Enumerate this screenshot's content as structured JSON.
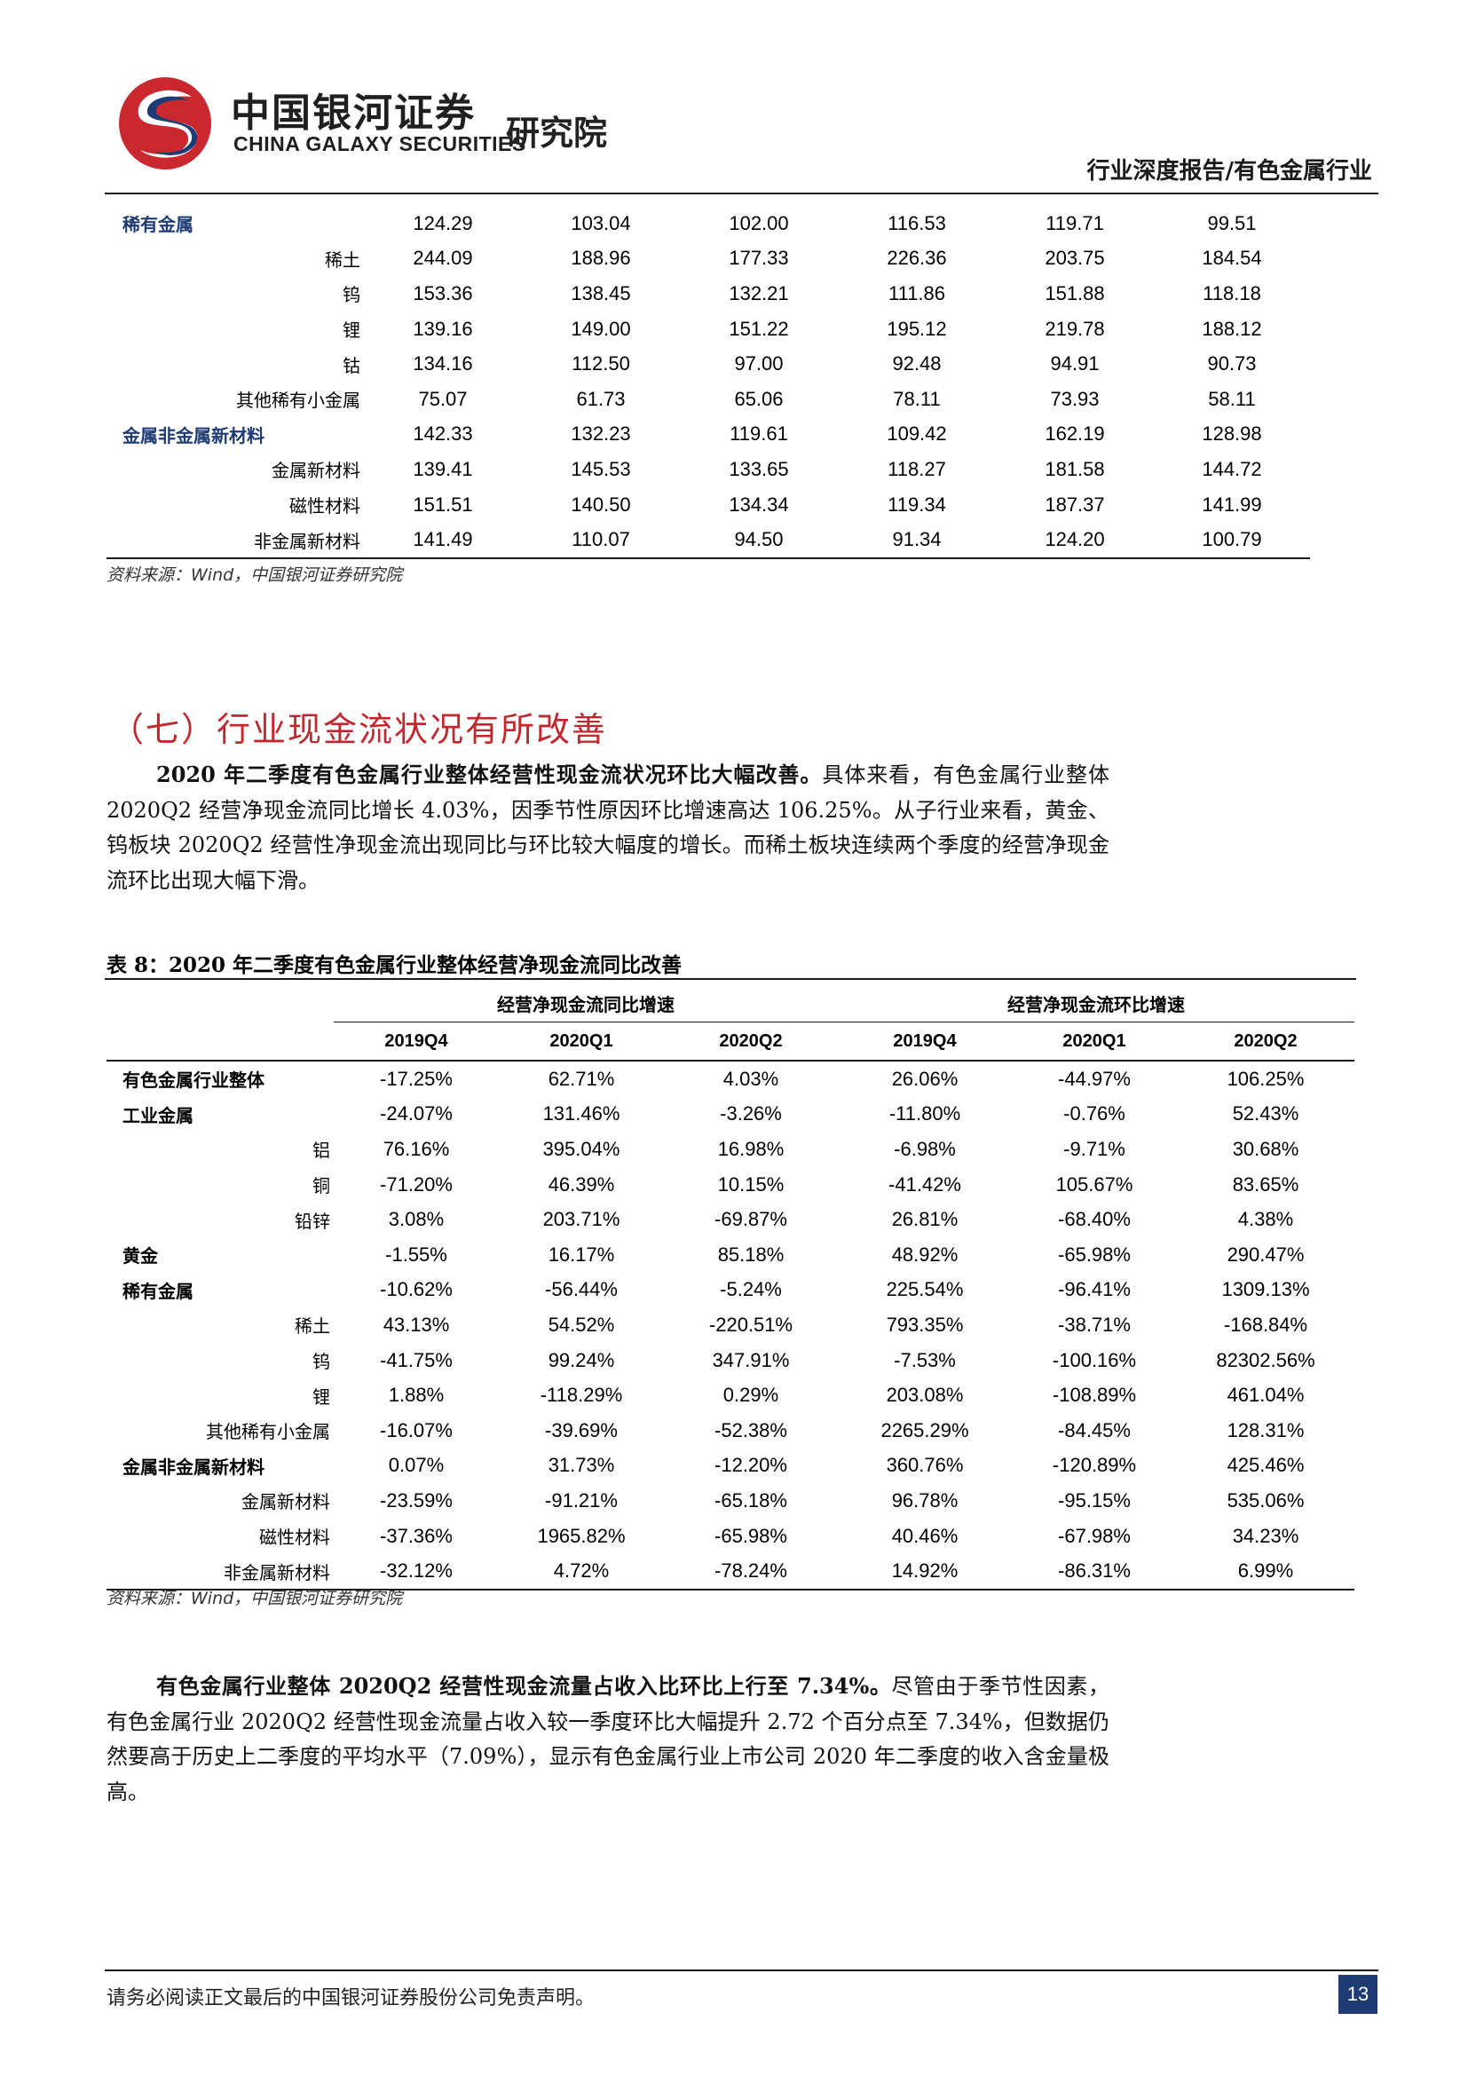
{
  "header": {
    "logo_cn": "中国银河证券",
    "logo_en": "CHINA GALAXY SECURITIES",
    "logo_institute": "研究院",
    "report_type": "行业深度报告/有色金属行业",
    "logo_colors": {
      "red": "#c8282e",
      "blue": "#1f3b73"
    }
  },
  "table1": {
    "rows": [
      {
        "label": "稀有金属",
        "type": "category",
        "values": [
          "124.29",
          "103.04",
          "102.00",
          "116.53",
          "119.71",
          "99.51"
        ]
      },
      {
        "label": "稀土",
        "type": "sub",
        "values": [
          "244.09",
          "188.96",
          "177.33",
          "226.36",
          "203.75",
          "184.54"
        ]
      },
      {
        "label": "钨",
        "type": "sub",
        "values": [
          "153.36",
          "138.45",
          "132.21",
          "111.86",
          "151.88",
          "118.18"
        ]
      },
      {
        "label": "锂",
        "type": "sub",
        "values": [
          "139.16",
          "149.00",
          "151.22",
          "195.12",
          "219.78",
          "188.12"
        ]
      },
      {
        "label": "钴",
        "type": "sub",
        "values": [
          "134.16",
          "112.50",
          "97.00",
          "92.48",
          "94.91",
          "90.73"
        ]
      },
      {
        "label": "其他稀有小金属",
        "type": "sub",
        "values": [
          "75.07",
          "61.73",
          "65.06",
          "78.11",
          "73.93",
          "58.11"
        ]
      },
      {
        "label": "金属非金属新材料",
        "type": "category",
        "values": [
          "142.33",
          "132.23",
          "119.61",
          "109.42",
          "162.19",
          "128.98"
        ]
      },
      {
        "label": "金属新材料",
        "type": "sub",
        "values": [
          "139.41",
          "145.53",
          "133.65",
          "118.27",
          "181.58",
          "144.72"
        ]
      },
      {
        "label": "磁性材料",
        "type": "sub",
        "values": [
          "151.51",
          "140.50",
          "134.34",
          "119.34",
          "187.37",
          "141.99"
        ]
      },
      {
        "label": "非金属新材料",
        "type": "sub",
        "values": [
          "141.49",
          "110.07",
          "94.50",
          "91.34",
          "124.20",
          "100.79"
        ]
      }
    ],
    "source": "资料来源：Wind，中国银河证券研究院"
  },
  "section": {
    "heading": "（七）行业现金流状况有所改善",
    "para1_bold": "2020 年二季度有色金属行业整体经营性现金流状况环比大幅改善。",
    "para1_rest": "具体来看，有色金属行业整体 2020Q2 经营净现金流同比增长 4.03%，因季节性原因环比增速高达 106.25%。从子行业来看，黄金、钨板块 2020Q2 经营性净现金流出现同比与环比较大幅度的增长。而稀土板块连续两个季度的经营净现金流环比出现大幅下滑。"
  },
  "table2": {
    "caption": "表 8：2020 年二季度有色金属行业整体经营净现金流同比改善",
    "group_headers": [
      "经营净现金流同比增速",
      "经营净现金流环比增速"
    ],
    "period_headers": [
      "2019Q4",
      "2020Q1",
      "2020Q2",
      "2019Q4",
      "2020Q1",
      "2020Q2"
    ],
    "rows": [
      {
        "label": "有色金属行业整体",
        "type": "category",
        "values": [
          "-17.25%",
          "62.71%",
          "4.03%",
          "26.06%",
          "-44.97%",
          "106.25%"
        ]
      },
      {
        "label": "工业金属",
        "type": "category",
        "values": [
          "-24.07%",
          "131.46%",
          "-3.26%",
          "-11.80%",
          "-0.76%",
          "52.43%"
        ]
      },
      {
        "label": "铝",
        "type": "sub",
        "values": [
          "76.16%",
          "395.04%",
          "16.98%",
          "-6.98%",
          "-9.71%",
          "30.68%"
        ]
      },
      {
        "label": "铜",
        "type": "sub",
        "values": [
          "-71.20%",
          "46.39%",
          "10.15%",
          "-41.42%",
          "105.67%",
          "83.65%"
        ]
      },
      {
        "label": "铅锌",
        "type": "sub",
        "values": [
          "3.08%",
          "203.71%",
          "-69.87%",
          "26.81%",
          "-68.40%",
          "4.38%"
        ]
      },
      {
        "label": "黄金",
        "type": "category",
        "values": [
          "-1.55%",
          "16.17%",
          "85.18%",
          "48.92%",
          "-65.98%",
          "290.47%"
        ]
      },
      {
        "label": "稀有金属",
        "type": "category",
        "values": [
          "-10.62%",
          "-56.44%",
          "-5.24%",
          "225.54%",
          "-96.41%",
          "1309.13%"
        ]
      },
      {
        "label": "稀土",
        "type": "sub",
        "values": [
          "43.13%",
          "54.52%",
          "-220.51%",
          "793.35%",
          "-38.71%",
          "-168.84%"
        ]
      },
      {
        "label": "钨",
        "type": "sub",
        "values": [
          "-41.75%",
          "99.24%",
          "347.91%",
          "-7.53%",
          "-100.16%",
          "82302.56%"
        ]
      },
      {
        "label": "锂",
        "type": "sub",
        "values": [
          "1.88%",
          "-118.29%",
          "0.29%",
          "203.08%",
          "-108.89%",
          "461.04%"
        ]
      },
      {
        "label": "其他稀有小金属",
        "type": "sub",
        "values": [
          "-16.07%",
          "-39.69%",
          "-52.38%",
          "2265.29%",
          "-84.45%",
          "128.31%"
        ]
      },
      {
        "label": "金属非金属新材料",
        "type": "category",
        "values": [
          "0.07%",
          "31.73%",
          "-12.20%",
          "360.76%",
          "-120.89%",
          "425.46%"
        ]
      },
      {
        "label": "金属新材料",
        "type": "sub",
        "values": [
          "-23.59%",
          "-91.21%",
          "-65.18%",
          "96.78%",
          "-95.15%",
          "535.06%"
        ]
      },
      {
        "label": "磁性材料",
        "type": "sub",
        "values": [
          "-37.36%",
          "1965.82%",
          "-65.98%",
          "40.46%",
          "-67.98%",
          "34.23%"
        ]
      },
      {
        "label": "非金属新材料",
        "type": "sub",
        "values": [
          "-32.12%",
          "4.72%",
          "-78.24%",
          "14.92%",
          "-86.31%",
          "6.99%"
        ]
      }
    ],
    "source": "资料来源：Wind，中国银河证券研究院"
  },
  "para2": {
    "bold": "有色金属行业整体 2020Q2 经营性现金流量占收入比环比上行至 7.34%。",
    "rest": "尽管由于季节性因素，有色金属行业 2020Q2 经营性现金流量占收入较一季度环比大幅提升 2.72 个百分点至 7.34%，但数据仍然要高于历史上二季度的平均水平（7.09%），显示有色金属行业上市公司 2020 年二季度的收入含金量极高。"
  },
  "footer": {
    "disclaimer": "请务必阅读正文最后的中国银河证券股份公司免责声明。",
    "page_number": "13"
  }
}
